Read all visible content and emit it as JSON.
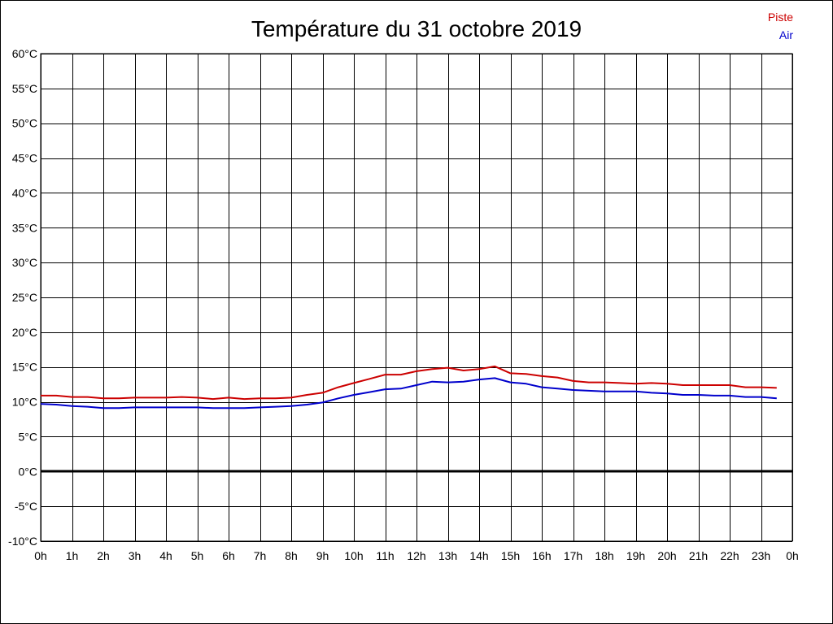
{
  "chart_data": {
    "type": "line",
    "title": "Température du 31 octobre 2019",
    "xlabel": "",
    "ylabel": "",
    "x_tick_labels": [
      "0h",
      "1h",
      "2h",
      "3h",
      "4h",
      "5h",
      "6h",
      "7h",
      "8h",
      "9h",
      "10h",
      "11h",
      "12h",
      "13h",
      "14h",
      "15h",
      "16h",
      "17h",
      "18h",
      "19h",
      "20h",
      "21h",
      "22h",
      "23h",
      "0h"
    ],
    "y_tick_labels": [
      "60°C",
      "55°C",
      "50°C",
      "45°C",
      "40°C",
      "35°C",
      "30°C",
      "25°C",
      "20°C",
      "15°C",
      "10°C",
      "5°C",
      "0°C",
      "-5°C",
      "-10°C"
    ],
    "xlim": [
      0,
      24
    ],
    "ylim": [
      -10,
      60
    ],
    "x_unit": "hour",
    "y_unit": "°C",
    "grid": true,
    "zero_line": true,
    "legend_position": "top-right",
    "series": [
      {
        "name": "Piste",
        "color": "#cc0000",
        "points": [
          [
            0,
            10.9
          ],
          [
            0.5,
            10.9
          ],
          [
            1,
            10.7
          ],
          [
            1.5,
            10.7
          ],
          [
            2,
            10.5
          ],
          [
            2.5,
            10.5
          ],
          [
            3,
            10.6
          ],
          [
            3.5,
            10.6
          ],
          [
            4,
            10.6
          ],
          [
            4.5,
            10.7
          ],
          [
            5,
            10.6
          ],
          [
            5.5,
            10.4
          ],
          [
            6,
            10.6
          ],
          [
            6.5,
            10.4
          ],
          [
            7,
            10.5
          ],
          [
            7.5,
            10.5
          ],
          [
            8,
            10.6
          ],
          [
            8.5,
            11.0
          ],
          [
            9,
            11.3
          ],
          [
            9.5,
            12.1
          ],
          [
            10,
            12.7
          ],
          [
            10.5,
            13.3
          ],
          [
            11,
            13.9
          ],
          [
            11.5,
            13.9
          ],
          [
            12,
            14.4
          ],
          [
            12.5,
            14.7
          ],
          [
            13,
            14.9
          ],
          [
            13.5,
            14.5
          ],
          [
            14,
            14.7
          ],
          [
            14.5,
            15.1
          ],
          [
            15,
            14.1
          ],
          [
            15.5,
            14.0
          ],
          [
            16,
            13.7
          ],
          [
            16.5,
            13.5
          ],
          [
            17,
            13.0
          ],
          [
            17.5,
            12.8
          ],
          [
            18,
            12.8
          ],
          [
            18.5,
            12.7
          ],
          [
            19,
            12.6
          ],
          [
            19.5,
            12.7
          ],
          [
            20,
            12.6
          ],
          [
            20.5,
            12.4
          ],
          [
            21,
            12.4
          ],
          [
            21.5,
            12.4
          ],
          [
            22,
            12.4
          ],
          [
            22.5,
            12.1
          ],
          [
            23,
            12.1
          ],
          [
            23.5,
            12.0
          ]
        ]
      },
      {
        "name": "Air",
        "color": "#0000cc",
        "points": [
          [
            0,
            9.7
          ],
          [
            0.5,
            9.6
          ],
          [
            1,
            9.4
          ],
          [
            1.5,
            9.3
          ],
          [
            2,
            9.1
          ],
          [
            2.5,
            9.1
          ],
          [
            3,
            9.2
          ],
          [
            3.5,
            9.2
          ],
          [
            4,
            9.2
          ],
          [
            4.5,
            9.2
          ],
          [
            5,
            9.2
          ],
          [
            5.5,
            9.1
          ],
          [
            6,
            9.1
          ],
          [
            6.5,
            9.1
          ],
          [
            7,
            9.2
          ],
          [
            7.5,
            9.3
          ],
          [
            8,
            9.4
          ],
          [
            8.5,
            9.6
          ],
          [
            9,
            9.9
          ],
          [
            9.5,
            10.5
          ],
          [
            10,
            11.0
          ],
          [
            10.5,
            11.4
          ],
          [
            11,
            11.8
          ],
          [
            11.5,
            11.9
          ],
          [
            12,
            12.4
          ],
          [
            12.5,
            12.9
          ],
          [
            13,
            12.8
          ],
          [
            13.5,
            12.9
          ],
          [
            14,
            13.2
          ],
          [
            14.5,
            13.4
          ],
          [
            15,
            12.8
          ],
          [
            15.5,
            12.6
          ],
          [
            16,
            12.1
          ],
          [
            16.5,
            11.9
          ],
          [
            17,
            11.7
          ],
          [
            17.5,
            11.6
          ],
          [
            18,
            11.5
          ],
          [
            18.5,
            11.5
          ],
          [
            19,
            11.5
          ],
          [
            19.5,
            11.3
          ],
          [
            20,
            11.2
          ],
          [
            20.5,
            11.0
          ],
          [
            21,
            11.0
          ],
          [
            21.5,
            10.9
          ],
          [
            22,
            10.9
          ],
          [
            22.5,
            10.7
          ],
          [
            23,
            10.7
          ],
          [
            23.5,
            10.5
          ]
        ]
      }
    ]
  }
}
